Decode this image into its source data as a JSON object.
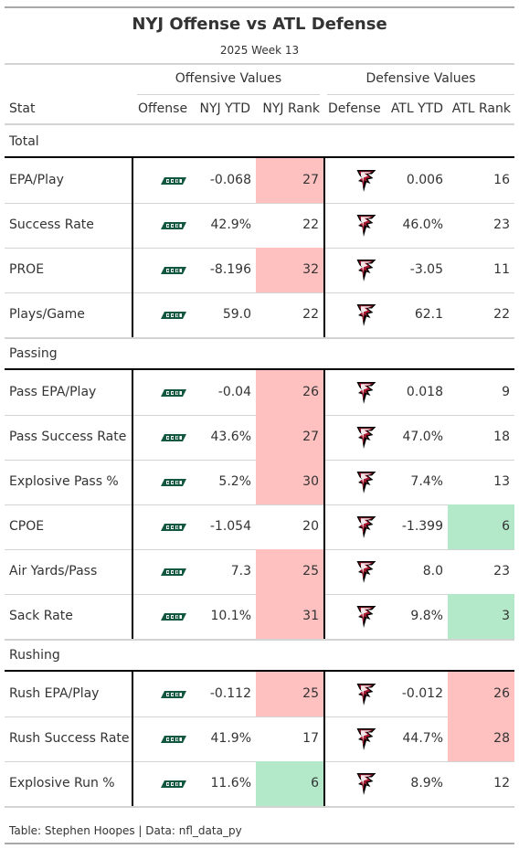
{
  "title": "NYJ Offense vs ATL Defense",
  "subtitle": "2025 Week 13",
  "spanners": {
    "offense": "Offensive Values",
    "defense": "Defensive Values"
  },
  "columns": {
    "stat": "Stat",
    "offense": "Offense",
    "off_ytd": "NYJ YTD",
    "off_rank": "NYJ Rank",
    "defense": "Defense",
    "def_ytd": "ATL YTD",
    "def_rank": "ATL Rank"
  },
  "logos": {
    "offense": "jets-logo-icon",
    "defense": "falcons-logo-icon"
  },
  "colors": {
    "bad_rank": "#ffc0c0",
    "good_rank": "#b3e9c9",
    "jets_green": "#125740",
    "falcons_red": "#a71930"
  },
  "groups": [
    {
      "name": "Total",
      "rows": [
        {
          "stat": "EPA/Play",
          "off_ytd": "-0.068",
          "off_rank": "27",
          "off_hl": "bad",
          "def_ytd": "0.006",
          "def_rank": "16",
          "def_hl": ""
        },
        {
          "stat": "Success Rate",
          "off_ytd": "42.9%",
          "off_rank": "22",
          "off_hl": "",
          "def_ytd": "46.0%",
          "def_rank": "23",
          "def_hl": ""
        },
        {
          "stat": "PROE",
          "off_ytd": "-8.196",
          "off_rank": "32",
          "off_hl": "bad",
          "def_ytd": "-3.05",
          "def_rank": "11",
          "def_hl": ""
        },
        {
          "stat": "Plays/Game",
          "off_ytd": "59.0",
          "off_rank": "22",
          "off_hl": "",
          "def_ytd": "62.1",
          "def_rank": "22",
          "def_hl": ""
        }
      ]
    },
    {
      "name": "Passing",
      "rows": [
        {
          "stat": "Pass EPA/Play",
          "off_ytd": "-0.04",
          "off_rank": "26",
          "off_hl": "bad",
          "def_ytd": "0.018",
          "def_rank": "9",
          "def_hl": ""
        },
        {
          "stat": "Pass Success Rate",
          "off_ytd": "43.6%",
          "off_rank": "27",
          "off_hl": "bad",
          "def_ytd": "47.0%",
          "def_rank": "18",
          "def_hl": ""
        },
        {
          "stat": "Explosive Pass %",
          "off_ytd": "5.2%",
          "off_rank": "30",
          "off_hl": "bad",
          "def_ytd": "7.4%",
          "def_rank": "13",
          "def_hl": ""
        },
        {
          "stat": "CPOE",
          "off_ytd": "-1.054",
          "off_rank": "20",
          "off_hl": "",
          "def_ytd": "-1.399",
          "def_rank": "6",
          "def_hl": "good"
        },
        {
          "stat": "Air Yards/Pass",
          "off_ytd": "7.3",
          "off_rank": "25",
          "off_hl": "bad",
          "def_ytd": "8.0",
          "def_rank": "23",
          "def_hl": ""
        },
        {
          "stat": "Sack Rate",
          "off_ytd": "10.1%",
          "off_rank": "31",
          "off_hl": "bad",
          "def_ytd": "9.8%",
          "def_rank": "3",
          "def_hl": "good"
        }
      ]
    },
    {
      "name": "Rushing",
      "rows": [
        {
          "stat": "Rush EPA/Play",
          "off_ytd": "-0.112",
          "off_rank": "25",
          "off_hl": "bad",
          "def_ytd": "-0.012",
          "def_rank": "26",
          "def_hl": "bad"
        },
        {
          "stat": "Rush Success Rate",
          "off_ytd": "41.9%",
          "off_rank": "17",
          "off_hl": "",
          "def_ytd": "44.7%",
          "def_rank": "28",
          "def_hl": "bad"
        },
        {
          "stat": "Explosive Run %",
          "off_ytd": "11.6%",
          "off_rank": "6",
          "off_hl": "good",
          "def_ytd": "8.9%",
          "def_rank": "12",
          "def_hl": ""
        }
      ]
    }
  ],
  "footer": "Table: Stephen Hoopes | Data: nfl_data_py"
}
